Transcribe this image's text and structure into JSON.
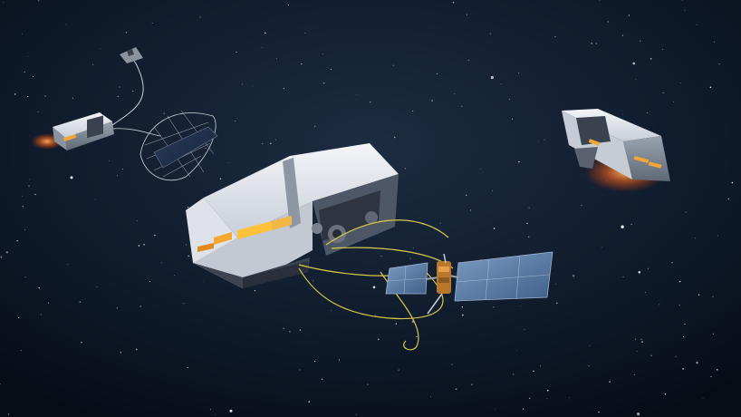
{
  "scene": {
    "background_top": "#1a2a3f",
    "background_bottom": "#070d17",
    "tether_color": "#d8c84a",
    "glow_color": "#ff6a1a",
    "hull_color": "#e6e9ee",
    "panel_color": "#5d7fa8",
    "star_color": "#ffffff"
  }
}
